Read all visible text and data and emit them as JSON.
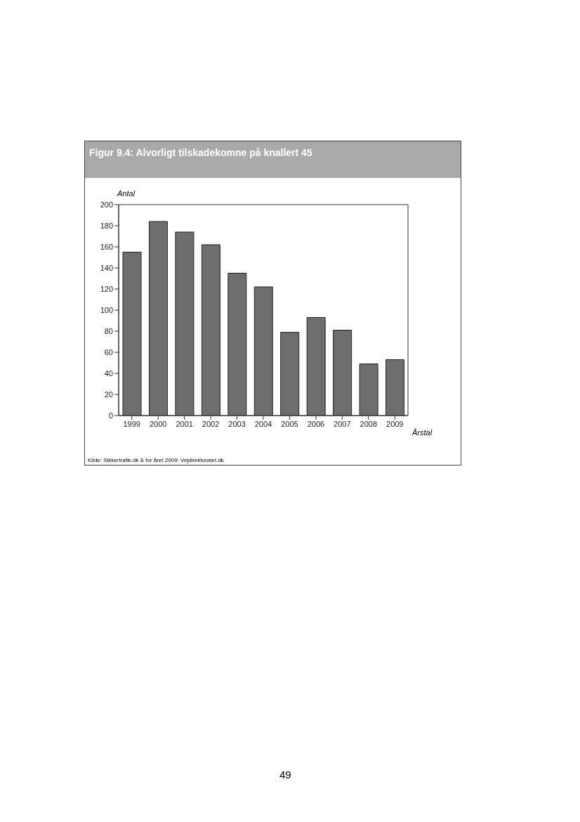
{
  "chart_data": {
    "type": "bar",
    "title": "Figur 9.4: Alvorligt tilskadekomne på knallert 45",
    "ylabel": "Antal",
    "xlabel": "Årstal",
    "categories": [
      "1999",
      "2000",
      "2001",
      "2002",
      "2003",
      "2004",
      "2005",
      "2006",
      "2007",
      "2008",
      "2009"
    ],
    "values": [
      155,
      184,
      174,
      162,
      135,
      122,
      79,
      93,
      81,
      49,
      53
    ],
    "color": "#6e6e6e",
    "ylim": [
      0,
      200
    ],
    "yticks": [
      0,
      20,
      40,
      60,
      80,
      100,
      120,
      140,
      160,
      180,
      200
    ],
    "grid": false,
    "legend": false,
    "annotations": [
      "Kilde: Sikkertrafik.dk & for året 2009: Vejdirektoratet.dk",
      "49"
    ]
  }
}
